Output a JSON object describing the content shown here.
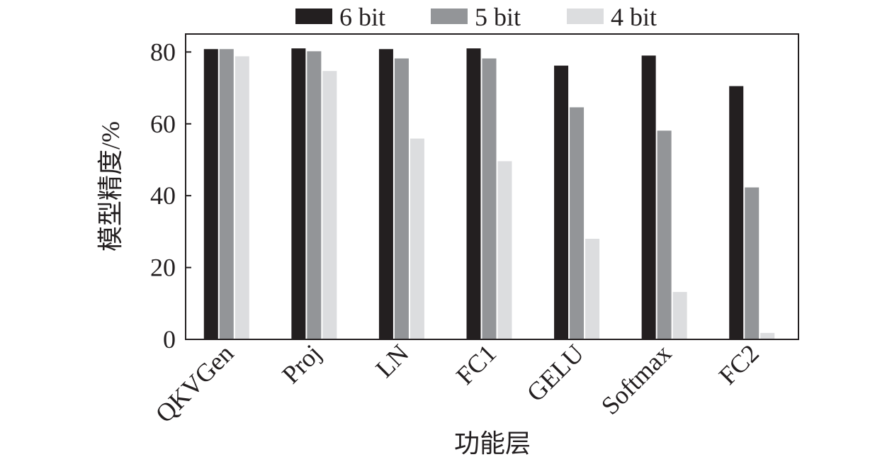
{
  "chart_data": {
    "type": "bar",
    "x_label": "功能层",
    "y_label": "模型精度/%",
    "categories": [
      "QKVGen",
      "Proj",
      "LN",
      "FC1",
      "GELU",
      "Softmax",
      "FC2"
    ],
    "series": [
      {
        "name": "6 bit",
        "color": "#231f20",
        "values": [
          80.8,
          81.0,
          80.8,
          81.0,
          76.2,
          79.0,
          70.5
        ]
      },
      {
        "name": "5 bit",
        "color": "#939598",
        "values": [
          80.8,
          80.2,
          78.2,
          78.2,
          64.6,
          58.1,
          42.3
        ]
      },
      {
        "name": "4 bit",
        "color": "#dcdddf",
        "values": [
          78.8,
          74.7,
          55.9,
          49.6,
          28.0,
          13.2,
          1.8
        ]
      }
    ],
    "ylim": [
      0,
      85
    ],
    "yticks": [
      0,
      20,
      40,
      60,
      80
    ],
    "legend": "top"
  }
}
